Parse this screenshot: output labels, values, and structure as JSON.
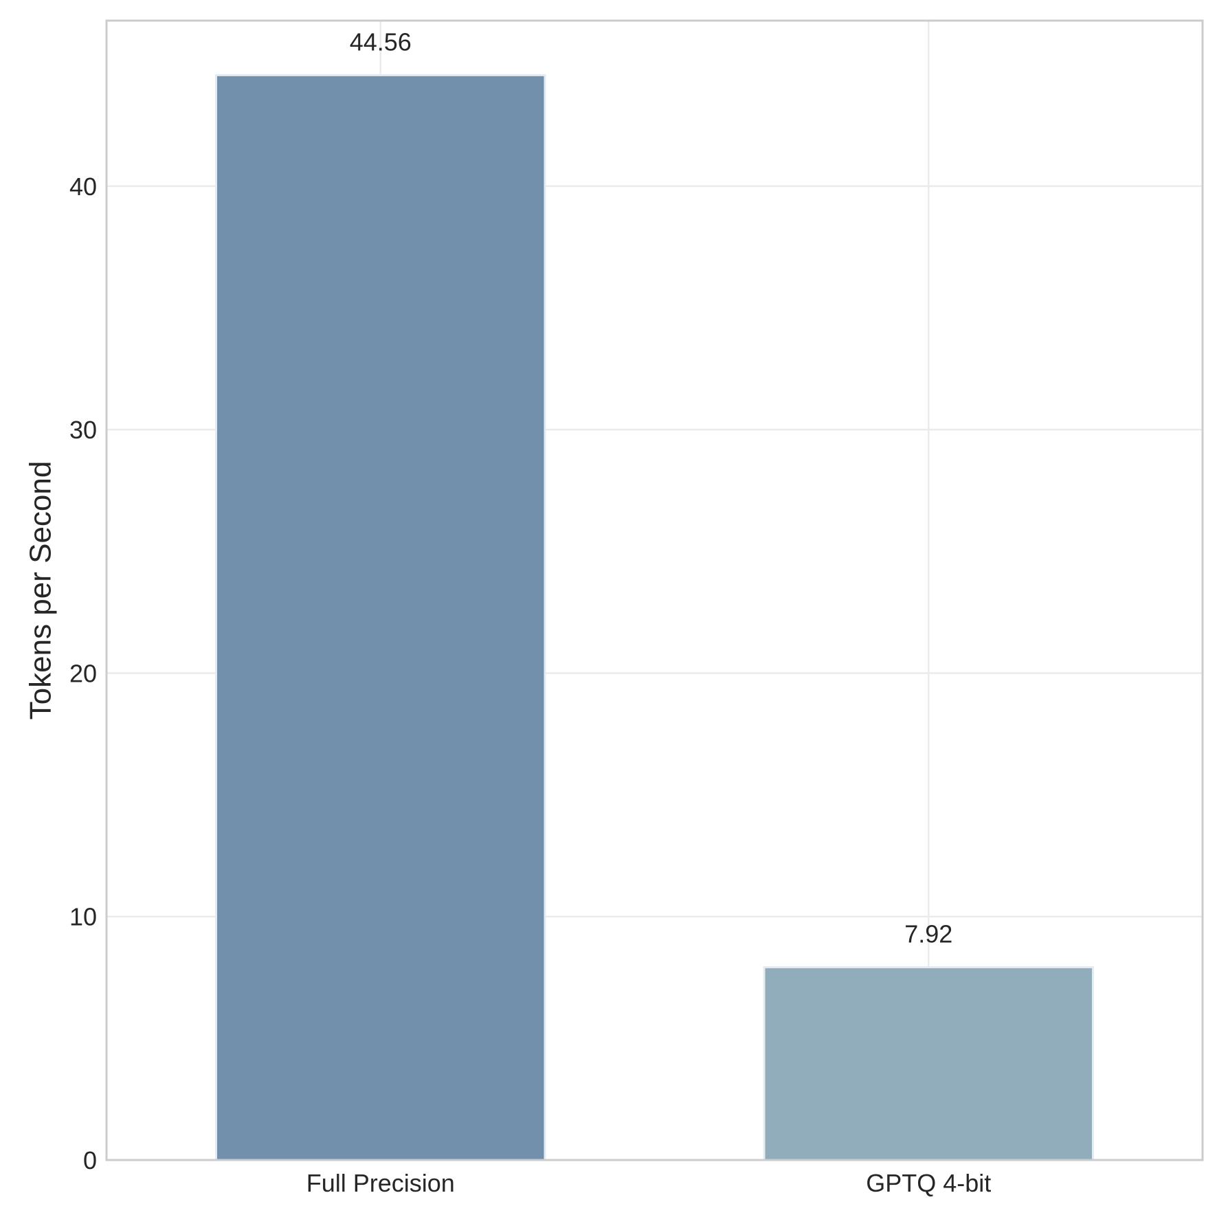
{
  "chart_data": {
    "type": "bar",
    "categories": [
      "Full Precision",
      "GPTQ 4-bit"
    ],
    "series": [
      {
        "values": [
          44.56,
          7.92
        ],
        "value_labels": [
          "44.56",
          "7.92"
        ],
        "colors": [
          "#7290ac",
          "#91adbb"
        ]
      }
    ],
    "title": "",
    "xlabel": "",
    "ylabel": "Tokens per Second",
    "ylim": [
      0,
      46.8
    ],
    "yticks": [
      0,
      10,
      20,
      30,
      40
    ],
    "ytick_labels": [
      "0",
      "10",
      "20",
      "30",
      "40"
    ],
    "grid": true,
    "colors": {
      "grid": "#ebebeb",
      "frame": "#cccccc",
      "bar_edge": "#e4ebf2",
      "text": "#262626"
    }
  }
}
